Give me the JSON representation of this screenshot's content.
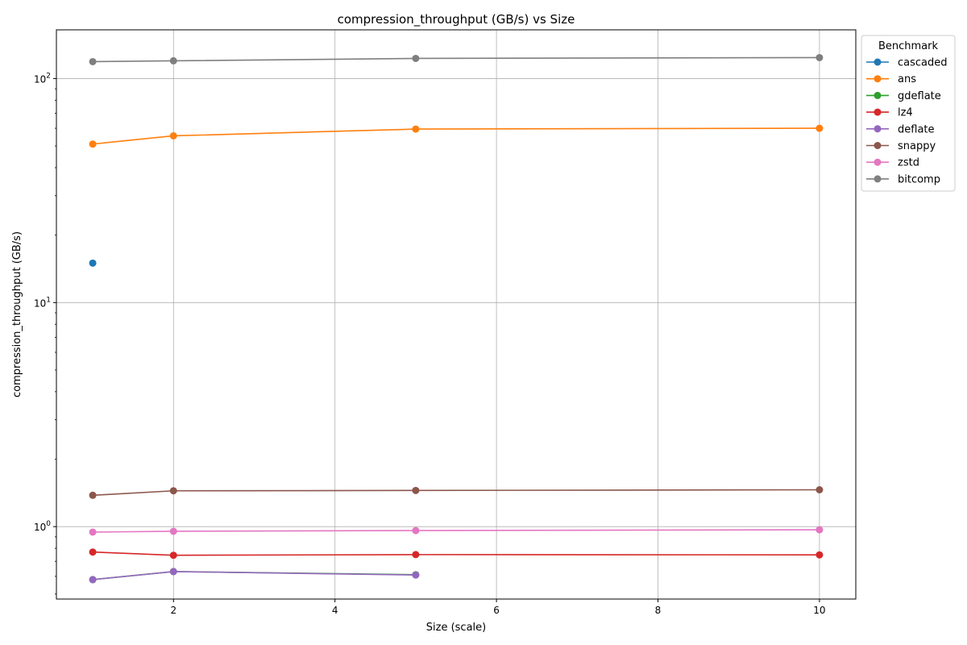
{
  "chart_data": {
    "type": "line",
    "title": "compression_throughput (GB/s) vs Size",
    "xlabel": "Size (scale)",
    "ylabel": "compression_throughput (GB/s)",
    "x_ticks": [
      2,
      4,
      6,
      8,
      10
    ],
    "x_tick_labels": [
      "2",
      "4",
      "6",
      "8",
      "10"
    ],
    "xlim": [
      0.55,
      10.45
    ],
    "y_scale": "log",
    "ylim": [
      0.475,
      165
    ],
    "y_ticks": [
      1,
      10,
      100
    ],
    "y_tick_labels": [
      {
        "base": "10",
        "exp": "0"
      },
      {
        "base": "10",
        "exp": "1"
      },
      {
        "base": "10",
        "exp": "2"
      }
    ],
    "grid": true,
    "legend": {
      "title": "Benchmark",
      "placement": "upper right, outside plot"
    },
    "series": [
      {
        "name": "cascaded",
        "color": "#1f77b4",
        "points": [
          [
            1,
            15.0
          ]
        ]
      },
      {
        "name": "ans",
        "color": "#ff7f0e",
        "points": [
          [
            1,
            51.0
          ],
          [
            2,
            55.5
          ],
          [
            5,
            59.5
          ],
          [
            10,
            60.0
          ]
        ]
      },
      {
        "name": "gdeflate",
        "color": "#2ca02c",
        "points": [
          [
            1,
            0.58
          ],
          [
            2,
            0.63
          ],
          [
            5,
            0.61
          ]
        ]
      },
      {
        "name": "lz4",
        "color": "#d62728",
        "points": [
          [
            1,
            0.77
          ],
          [
            2,
            0.745
          ],
          [
            5,
            0.75
          ],
          [
            10,
            0.748
          ]
        ]
      },
      {
        "name": "deflate",
        "color": "#9467bd",
        "points": [
          [
            1,
            0.58
          ],
          [
            2,
            0.63
          ],
          [
            5,
            0.608
          ]
        ]
      },
      {
        "name": "snappy",
        "color": "#8c564b",
        "points": [
          [
            1,
            1.38
          ],
          [
            2,
            1.445
          ],
          [
            5,
            1.45
          ],
          [
            10,
            1.46
          ]
        ]
      },
      {
        "name": "zstd",
        "color": "#e377c2",
        "points": [
          [
            1,
            0.945
          ],
          [
            2,
            0.953
          ],
          [
            5,
            0.96
          ],
          [
            10,
            0.968
          ]
        ]
      },
      {
        "name": "bitcomp",
        "color": "#7f7f7f",
        "points": [
          [
            1,
            119.0
          ],
          [
            2,
            120.0
          ],
          [
            5,
            123.0
          ],
          [
            10,
            124.0
          ]
        ]
      }
    ]
  }
}
